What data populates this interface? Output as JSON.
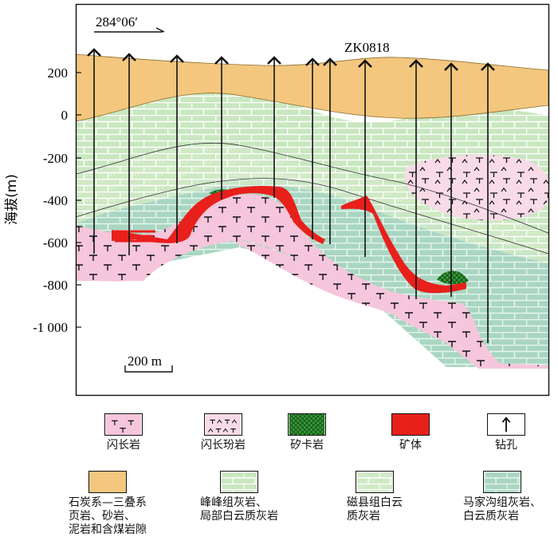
{
  "figure": {
    "azimuth_label": "284°06′",
    "borehole_label": "ZK0818",
    "yaxis_label": "海拔(m)",
    "yticks": [
      "200",
      "0",
      "-200",
      "-400",
      "-600",
      "-800",
      "-1 000"
    ],
    "scale_label": "200 m"
  },
  "legend": {
    "items": [
      {
        "key": "diorite",
        "label": "闪长岩",
        "color": "#f5c6dc"
      },
      {
        "key": "diorite_porphyrite",
        "label": "闪长玢岩",
        "color": "#f9dbe8"
      },
      {
        "key": "skarn",
        "label": "矽卡岩",
        "color": "#2f8f2f"
      },
      {
        "key": "ore_body",
        "label": "矿体",
        "color": "#e8201c"
      },
      {
        "key": "borehole",
        "label": "钻孔",
        "color": "#000000"
      },
      {
        "key": "carboniferous_triassic",
        "label": "石炭系—三叠系\n页岩、砂岩、\n泥岩和含煤岩隙",
        "color": "#f3c77e"
      },
      {
        "key": "fengfeng",
        "label": "峰峰组灰岩、\n局部白云质灰岩",
        "color": "#c9e7c0"
      },
      {
        "key": "cixian",
        "label": "磁县组白云\n质灰岩",
        "color": "#cfe9c4"
      },
      {
        "key": "majiagou",
        "label": "马家沟组灰岩、\n白云质灰岩",
        "color": "#a9d6c2"
      }
    ]
  }
}
